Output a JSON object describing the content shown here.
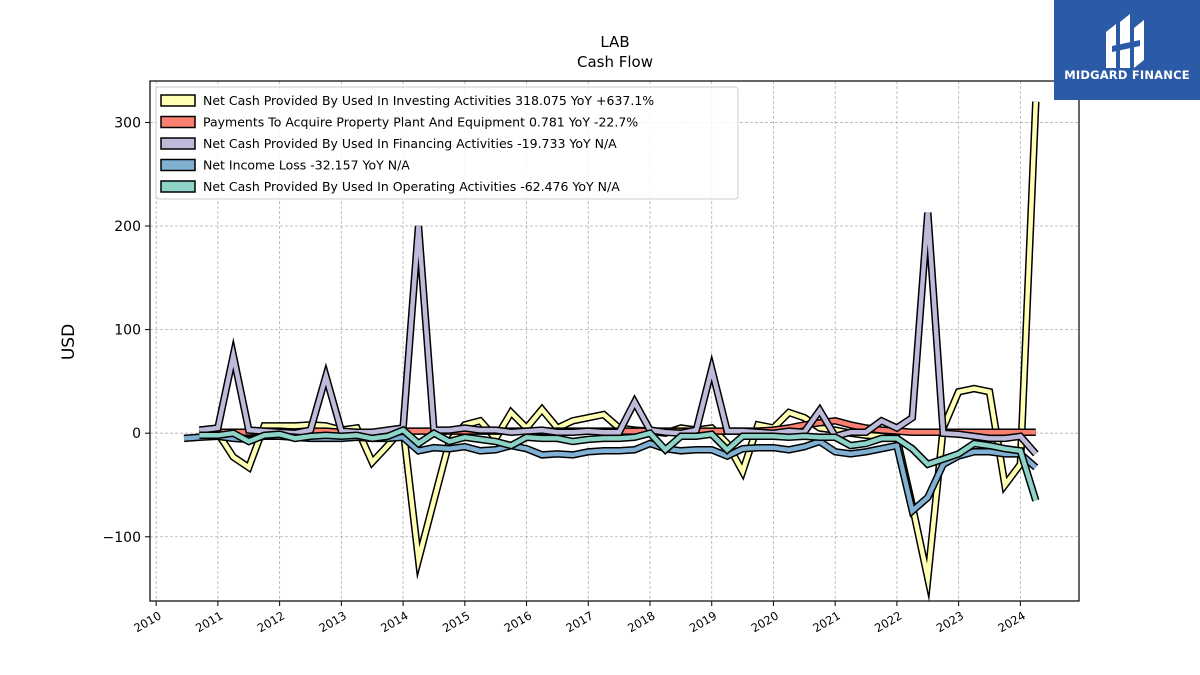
{
  "brand": {
    "name": "MIDGARD FINANCE"
  },
  "chart_data": {
    "type": "line",
    "title": "LAB",
    "subtitle": "Cash Flow",
    "xlabel": "",
    "ylabel": "USD",
    "xlim": [
      2009.9,
      2024.95
    ],
    "ylim": [
      -162,
      340
    ],
    "xticks": [
      2010,
      2011,
      2012,
      2013,
      2014,
      2015,
      2016,
      2017,
      2018,
      2019,
      2020,
      2021,
      2022,
      2023,
      2024
    ],
    "xtick_labels": [
      "2010",
      "2011",
      "2012",
      "2013",
      "2014",
      "2015",
      "2016",
      "2017",
      "2018",
      "2019",
      "2020",
      "2021",
      "2022",
      "2023",
      "2024"
    ],
    "yticks": [
      -100,
      0,
      100,
      200,
      300
    ],
    "ytick_labels": [
      "−100",
      "0",
      "100",
      "200",
      "300"
    ],
    "grid": true,
    "legend_position": "top-left",
    "series": [
      {
        "name": "Net Cash Provided By Used In Investing Activities",
        "legend": "Net Cash Provided By Used In Investing Activities  318.075 YoY +637.1%",
        "color": "#ffffb3",
        "points": [
          [
            2010.7,
            3
          ],
          [
            2011.0,
            0
          ],
          [
            2011.25,
            -23
          ],
          [
            2011.5,
            -33
          ],
          [
            2011.75,
            7
          ],
          [
            2012.0,
            7
          ],
          [
            2012.25,
            7
          ],
          [
            2012.5,
            8
          ],
          [
            2012.75,
            7
          ],
          [
            2013.0,
            3
          ],
          [
            2013.25,
            5
          ],
          [
            2013.5,
            -28
          ],
          [
            2013.75,
            -12
          ],
          [
            2014.0,
            5
          ],
          [
            2014.25,
            -122
          ],
          [
            2014.5,
            -65
          ],
          [
            2014.75,
            -8
          ],
          [
            2015.0,
            8
          ],
          [
            2015.25,
            12
          ],
          [
            2015.5,
            -5
          ],
          [
            2015.75,
            20
          ],
          [
            2016.0,
            5
          ],
          [
            2016.25,
            23
          ],
          [
            2016.5,
            5
          ],
          [
            2016.75,
            12
          ],
          [
            2017.0,
            15
          ],
          [
            2017.25,
            18
          ],
          [
            2017.5,
            5
          ],
          [
            2017.75,
            3
          ],
          [
            2018.0,
            2
          ],
          [
            2018.25,
            0
          ],
          [
            2018.5,
            5
          ],
          [
            2018.75,
            3
          ],
          [
            2019.0,
            5
          ],
          [
            2019.25,
            -10
          ],
          [
            2019.5,
            -37
          ],
          [
            2019.75,
            8
          ],
          [
            2020.0,
            5
          ],
          [
            2020.25,
            20
          ],
          [
            2020.5,
            15
          ],
          [
            2020.75,
            5
          ],
          [
            2021.0,
            3
          ],
          [
            2021.25,
            0
          ],
          [
            2021.5,
            -2
          ],
          [
            2021.75,
            -3
          ],
          [
            2022.0,
            -5
          ],
          [
            2022.25,
            -70
          ],
          [
            2022.5,
            -140
          ],
          [
            2022.75,
            5
          ],
          [
            2023.0,
            40
          ],
          [
            2023.25,
            43
          ],
          [
            2023.5,
            40
          ],
          [
            2023.75,
            -50
          ],
          [
            2024.0,
            -30
          ],
          [
            2024.25,
            320
          ]
        ]
      },
      {
        "name": "Payments To Acquire Property Plant And Equipment",
        "legend": "Payments To Acquire Property Plant And Equipment  0.781 YoY -22.7%",
        "color": "#fb8072",
        "points": [
          [
            2010.7,
            0
          ],
          [
            2011.0,
            1
          ],
          [
            2011.25,
            1
          ],
          [
            2011.5,
            1
          ],
          [
            2011.75,
            2
          ],
          [
            2012.0,
            2
          ],
          [
            2012.25,
            1
          ],
          [
            2012.5,
            2
          ],
          [
            2012.75,
            2
          ],
          [
            2013.0,
            1
          ],
          [
            2013.25,
            1
          ],
          [
            2013.5,
            1
          ],
          [
            2013.75,
            1
          ],
          [
            2014.0,
            2
          ],
          [
            2014.25,
            2
          ],
          [
            2014.5,
            2
          ],
          [
            2014.75,
            2
          ],
          [
            2015.0,
            2
          ],
          [
            2015.25,
            2
          ],
          [
            2015.5,
            2
          ],
          [
            2015.75,
            2
          ],
          [
            2016.0,
            2
          ],
          [
            2016.25,
            2
          ],
          [
            2016.5,
            2
          ],
          [
            2016.75,
            2
          ],
          [
            2017.0,
            2
          ],
          [
            2017.25,
            2
          ],
          [
            2017.5,
            2
          ],
          [
            2017.75,
            2
          ],
          [
            2018.0,
            2
          ],
          [
            2018.25,
            2
          ],
          [
            2018.5,
            2
          ],
          [
            2018.75,
            2
          ],
          [
            2019.0,
            2
          ],
          [
            2019.25,
            2
          ],
          [
            2019.5,
            2
          ],
          [
            2019.75,
            2
          ],
          [
            2020.0,
            3
          ],
          [
            2020.25,
            5
          ],
          [
            2020.5,
            8
          ],
          [
            2020.75,
            10
          ],
          [
            2021.0,
            12
          ],
          [
            2021.25,
            8
          ],
          [
            2021.5,
            5
          ],
          [
            2021.75,
            3
          ],
          [
            2022.0,
            2
          ],
          [
            2022.25,
            1
          ],
          [
            2022.5,
            1
          ],
          [
            2022.75,
            1
          ],
          [
            2023.0,
            1
          ],
          [
            2023.25,
            1
          ],
          [
            2023.5,
            1
          ],
          [
            2023.75,
            1
          ],
          [
            2024.0,
            1
          ],
          [
            2024.25,
            1
          ]
        ]
      },
      {
        "name": "Net Cash Provided By Used In Financing Activities",
        "legend": "Net Cash Provided By Used In Financing Activities  -19.733 YoY N/A",
        "color": "#bebada",
        "points": [
          [
            2010.7,
            3
          ],
          [
            2011.0,
            5
          ],
          [
            2011.25,
            75
          ],
          [
            2011.5,
            3
          ],
          [
            2011.75,
            2
          ],
          [
            2012.0,
            1
          ],
          [
            2012.25,
            0
          ],
          [
            2012.5,
            3
          ],
          [
            2012.75,
            55
          ],
          [
            2013.0,
            2
          ],
          [
            2013.25,
            1
          ],
          [
            2013.5,
            1
          ],
          [
            2013.75,
            3
          ],
          [
            2014.0,
            5
          ],
          [
            2014.25,
            200
          ],
          [
            2014.5,
            3
          ],
          [
            2014.75,
            3
          ],
          [
            2015.0,
            5
          ],
          [
            2015.25,
            3
          ],
          [
            2015.5,
            3
          ],
          [
            2015.75,
            1
          ],
          [
            2016.0,
            2
          ],
          [
            2016.25,
            3
          ],
          [
            2016.5,
            1
          ],
          [
            2016.75,
            1
          ],
          [
            2017.0,
            2
          ],
          [
            2017.25,
            1
          ],
          [
            2017.5,
            1
          ],
          [
            2017.75,
            30
          ],
          [
            2018.0,
            3
          ],
          [
            2018.25,
            1
          ],
          [
            2018.5,
            0
          ],
          [
            2018.75,
            3
          ],
          [
            2019.0,
            62
          ],
          [
            2019.25,
            2
          ],
          [
            2019.5,
            2
          ],
          [
            2019.75,
            1
          ],
          [
            2020.0,
            0
          ],
          [
            2020.25,
            2
          ],
          [
            2020.5,
            1
          ],
          [
            2020.75,
            22
          ],
          [
            2021.0,
            -3
          ],
          [
            2021.25,
            1
          ],
          [
            2021.5,
            1
          ],
          [
            2021.75,
            12
          ],
          [
            2022.0,
            5
          ],
          [
            2022.25,
            15
          ],
          [
            2022.5,
            213
          ],
          [
            2022.75,
            0
          ],
          [
            2023.0,
            -1
          ],
          [
            2023.25,
            -3
          ],
          [
            2023.5,
            -5
          ],
          [
            2023.75,
            -5
          ],
          [
            2024.0,
            -3
          ],
          [
            2024.25,
            -20
          ]
        ]
      },
      {
        "name": "Net Income Loss",
        "legend": "Net Income Loss  -32.157 YoY N/A",
        "color": "#80b1d3",
        "points": [
          [
            2010.45,
            -5
          ],
          [
            2010.7,
            -4
          ],
          [
            2011.0,
            -3
          ],
          [
            2011.25,
            -5
          ],
          [
            2011.5,
            -6
          ],
          [
            2011.75,
            -3
          ],
          [
            2012.0,
            -3
          ],
          [
            2012.25,
            -4
          ],
          [
            2012.5,
            -5
          ],
          [
            2012.75,
            -5
          ],
          [
            2013.0,
            -5
          ],
          [
            2013.25,
            -4
          ],
          [
            2013.5,
            -5
          ],
          [
            2013.75,
            -5
          ],
          [
            2014.0,
            -4
          ],
          [
            2014.25,
            -17
          ],
          [
            2014.5,
            -14
          ],
          [
            2014.75,
            -15
          ],
          [
            2015.0,
            -13
          ],
          [
            2015.25,
            -17
          ],
          [
            2015.5,
            -16
          ],
          [
            2015.75,
            -12
          ],
          [
            2016.0,
            -15
          ],
          [
            2016.25,
            -21
          ],
          [
            2016.5,
            -20
          ],
          [
            2016.75,
            -21
          ],
          [
            2017.0,
            -18
          ],
          [
            2017.25,
            -17
          ],
          [
            2017.5,
            -17
          ],
          [
            2017.75,
            -16
          ],
          [
            2018.0,
            -10
          ],
          [
            2018.25,
            -15
          ],
          [
            2018.5,
            -17
          ],
          [
            2018.75,
            -16
          ],
          [
            2019.0,
            -16
          ],
          [
            2019.25,
            -22
          ],
          [
            2019.5,
            -15
          ],
          [
            2019.75,
            -14
          ],
          [
            2020.0,
            -14
          ],
          [
            2020.25,
            -16
          ],
          [
            2020.5,
            -13
          ],
          [
            2020.75,
            -8
          ],
          [
            2021.0,
            -18
          ],
          [
            2021.25,
            -20
          ],
          [
            2021.5,
            -18
          ],
          [
            2021.75,
            -15
          ],
          [
            2022.0,
            -12
          ],
          [
            2022.25,
            -75
          ],
          [
            2022.5,
            -62
          ],
          [
            2022.75,
            -30
          ],
          [
            2023.0,
            -22
          ],
          [
            2023.25,
            -18
          ],
          [
            2023.5,
            -18
          ],
          [
            2023.75,
            -20
          ],
          [
            2024.0,
            -20
          ],
          [
            2024.25,
            -33
          ]
        ]
      },
      {
        "name": "Net Cash Provided By Used In Operating Activities",
        "legend": "Net Cash Provided By Used In Operating Activities  -62.476 YoY N/A",
        "color": "#8dd3c7",
        "points": [
          [
            2010.7,
            -2
          ],
          [
            2011.0,
            -2
          ],
          [
            2011.25,
            0
          ],
          [
            2011.5,
            -8
          ],
          [
            2011.75,
            -2
          ],
          [
            2012.0,
            -1
          ],
          [
            2012.25,
            -5
          ],
          [
            2012.5,
            -3
          ],
          [
            2012.75,
            -2
          ],
          [
            2013.0,
            -3
          ],
          [
            2013.25,
            -2
          ],
          [
            2013.5,
            -5
          ],
          [
            2013.75,
            -3
          ],
          [
            2014.0,
            3
          ],
          [
            2014.25,
            -10
          ],
          [
            2014.5,
            0
          ],
          [
            2014.75,
            -8
          ],
          [
            2015.0,
            -4
          ],
          [
            2015.25,
            -6
          ],
          [
            2015.5,
            -8
          ],
          [
            2015.75,
            -12
          ],
          [
            2016.0,
            -4
          ],
          [
            2016.25,
            -5
          ],
          [
            2016.5,
            -5
          ],
          [
            2016.75,
            -8
          ],
          [
            2017.0,
            -6
          ],
          [
            2017.25,
            -5
          ],
          [
            2017.5,
            -5
          ],
          [
            2017.75,
            -4
          ],
          [
            2018.0,
            0
          ],
          [
            2018.25,
            -16
          ],
          [
            2018.5,
            -3
          ],
          [
            2018.75,
            -3
          ],
          [
            2019.0,
            -1
          ],
          [
            2019.25,
            -16
          ],
          [
            2019.5,
            -3
          ],
          [
            2019.75,
            -3
          ],
          [
            2020.0,
            -3
          ],
          [
            2020.25,
            -4
          ],
          [
            2020.5,
            -3
          ],
          [
            2020.75,
            -4
          ],
          [
            2021.0,
            -4
          ],
          [
            2021.25,
            -12
          ],
          [
            2021.5,
            -10
          ],
          [
            2021.75,
            -5
          ],
          [
            2022.0,
            -5
          ],
          [
            2022.25,
            -15
          ],
          [
            2022.5,
            -30
          ],
          [
            2022.75,
            -25
          ],
          [
            2023.0,
            -20
          ],
          [
            2023.25,
            -10
          ],
          [
            2023.5,
            -12
          ],
          [
            2023.75,
            -15
          ],
          [
            2024.0,
            -17
          ],
          [
            2024.25,
            -65
          ]
        ]
      }
    ]
  }
}
